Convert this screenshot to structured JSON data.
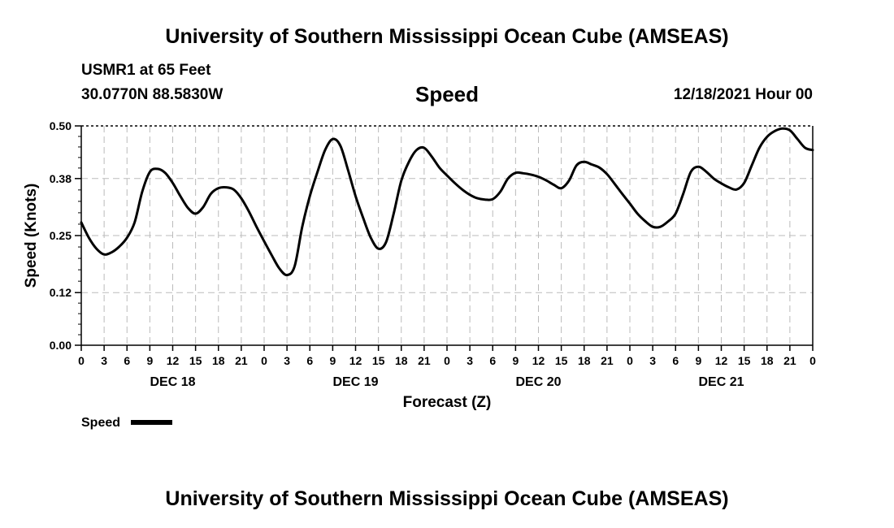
{
  "header": {
    "title": "University of Southern Mississippi Ocean Cube (AMSEAS)",
    "station": "USMR1 at 65 Feet",
    "coords": "30.0770N  88.5830W",
    "variable": "Speed",
    "datetime": "12/18/2021 Hour 00"
  },
  "footer": {
    "title": "University of Southern Mississippi Ocean Cube (AMSEAS)"
  },
  "chart_data": {
    "type": "line",
    "title": "Speed",
    "xlabel": "Forecast (Z)",
    "ylabel": "Speed (Knots)",
    "xlim": [
      0,
      96
    ],
    "ylim": [
      0,
      0.5
    ],
    "yticks": [
      0.0,
      0.12,
      0.25,
      0.38,
      0.5
    ],
    "ytick_labels": [
      "0.00",
      "0.12",
      "0.25",
      "0.38",
      "0.50"
    ],
    "xticks": [
      0,
      3,
      6,
      9,
      12,
      15,
      18,
      21,
      24,
      27,
      30,
      33,
      36,
      39,
      42,
      45,
      48,
      51,
      54,
      57,
      60,
      63,
      66,
      69,
      72,
      75,
      78,
      81,
      84,
      87,
      90,
      93,
      96
    ],
    "xtick_labels": [
      "0",
      "3",
      "6",
      "9",
      "12",
      "15",
      "18",
      "21",
      "0",
      "3",
      "6",
      "9",
      "12",
      "15",
      "18",
      "21",
      "0",
      "3",
      "6",
      "9",
      "12",
      "15",
      "18",
      "21",
      "0",
      "3",
      "6",
      "9",
      "12",
      "15",
      "18",
      "21",
      "0"
    ],
    "day_labels": [
      {
        "x": 12,
        "label": "DEC 18"
      },
      {
        "x": 36,
        "label": "DEC 19"
      },
      {
        "x": 60,
        "label": "DEC 20"
      },
      {
        "x": 84,
        "label": "DEC 21"
      }
    ],
    "grid": true,
    "legend": {
      "position": "bottom-left",
      "label": "Speed"
    },
    "series": [
      {
        "name": "Speed",
        "x": [
          0,
          1,
          2,
          3,
          4,
          5,
          6,
          7,
          8,
          9,
          10,
          11,
          12,
          13,
          14,
          15,
          16,
          17,
          18,
          19,
          20,
          21,
          22,
          23,
          24,
          25,
          26,
          27,
          28,
          29,
          30,
          31,
          32,
          33,
          34,
          35,
          36,
          37,
          38,
          39,
          40,
          41,
          42,
          43,
          44,
          45,
          46,
          47,
          48,
          49,
          50,
          51,
          52,
          53,
          54,
          55,
          56,
          57,
          58,
          59,
          60,
          61,
          62,
          63,
          64,
          65,
          66,
          67,
          68,
          69,
          70,
          71,
          72,
          73,
          74,
          75,
          76,
          77,
          78,
          79,
          80,
          81,
          82,
          83,
          84,
          85,
          86,
          87,
          88,
          89,
          90,
          91,
          92,
          93,
          94,
          95,
          96
        ],
        "values": [
          0.28,
          0.245,
          0.22,
          0.207,
          0.212,
          0.225,
          0.245,
          0.28,
          0.35,
          0.395,
          0.402,
          0.393,
          0.37,
          0.34,
          0.313,
          0.3,
          0.315,
          0.345,
          0.358,
          0.36,
          0.355,
          0.335,
          0.305,
          0.27,
          0.237,
          0.205,
          0.175,
          0.16,
          0.18,
          0.27,
          0.34,
          0.395,
          0.445,
          0.47,
          0.455,
          0.4,
          0.34,
          0.29,
          0.245,
          0.22,
          0.235,
          0.3,
          0.375,
          0.418,
          0.445,
          0.45,
          0.43,
          0.405,
          0.387,
          0.37,
          0.355,
          0.343,
          0.335,
          0.332,
          0.333,
          0.35,
          0.38,
          0.393,
          0.392,
          0.389,
          0.384,
          0.376,
          0.366,
          0.358,
          0.375,
          0.41,
          0.418,
          0.412,
          0.405,
          0.39,
          0.368,
          0.345,
          0.323,
          0.3,
          0.283,
          0.27,
          0.27,
          0.282,
          0.3,
          0.345,
          0.395,
          0.407,
          0.396,
          0.38,
          0.369,
          0.36,
          0.355,
          0.37,
          0.41,
          0.45,
          0.475,
          0.488,
          0.494,
          0.49,
          0.47,
          0.45,
          0.445
        ]
      }
    ]
  }
}
